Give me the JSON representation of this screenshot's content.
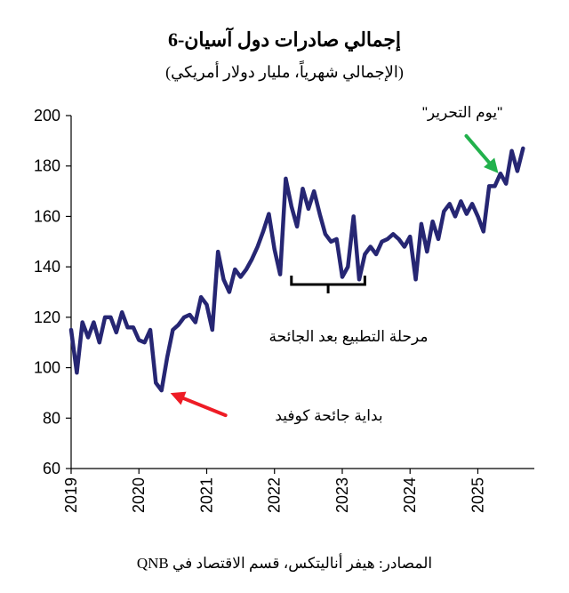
{
  "chart_data": {
    "type": "line",
    "title": "إجمالي صادرات دول آسيان-6",
    "subtitle": "(الإجمالي شهرياً، مليار دولار أمريكي)",
    "source": "المصادر: هيفر أناليتكس، قسم الاقتصاد في QNB",
    "xlabel": "",
    "ylabel": "",
    "ylim": [
      60,
      200
    ],
    "yticks": [
      60,
      80,
      100,
      120,
      140,
      160,
      180,
      200
    ],
    "xlim": [
      "2019-01",
      "2025-11"
    ],
    "xticks": [
      "2019",
      "2020",
      "2021",
      "2022",
      "2023",
      "2024",
      "2025"
    ],
    "grid": false,
    "line_color": "#262673",
    "series": [
      {
        "name": "",
        "points": [
          [
            "2019-01",
            115
          ],
          [
            "2019-02",
            98
          ],
          [
            "2019-03",
            118
          ],
          [
            "2019-04",
            112
          ],
          [
            "2019-05",
            118
          ],
          [
            "2019-06",
            110
          ],
          [
            "2019-07",
            120
          ],
          [
            "2019-08",
            120
          ],
          [
            "2019-09",
            114
          ],
          [
            "2019-10",
            122
          ],
          [
            "2019-11",
            116
          ],
          [
            "2019-12",
            116
          ],
          [
            "2020-01",
            111
          ],
          [
            "2020-02",
            110
          ],
          [
            "2020-03",
            115
          ],
          [
            "2020-04",
            94
          ],
          [
            "2020-05",
            91
          ],
          [
            "2020-06",
            104
          ],
          [
            "2020-07",
            115
          ],
          [
            "2020-08",
            117
          ],
          [
            "2020-09",
            120
          ],
          [
            "2020-10",
            121
          ],
          [
            "2020-11",
            118
          ],
          [
            "2020-12",
            128
          ],
          [
            "2021-01",
            125
          ],
          [
            "2021-02",
            115
          ],
          [
            "2021-03",
            146
          ],
          [
            "2021-04",
            135
          ],
          [
            "2021-05",
            130
          ],
          [
            "2021-06",
            139
          ],
          [
            "2021-07",
            136
          ],
          [
            "2021-08",
            139
          ],
          [
            "2021-09",
            143
          ],
          [
            "2021-10",
            148
          ],
          [
            "2021-11",
            154
          ],
          [
            "2021-12",
            161
          ],
          [
            "2022-01",
            147
          ],
          [
            "2022-02",
            137
          ],
          [
            "2022-03",
            175
          ],
          [
            "2022-04",
            164
          ],
          [
            "2022-05",
            156
          ],
          [
            "2022-06",
            171
          ],
          [
            "2022-07",
            163
          ],
          [
            "2022-08",
            170
          ],
          [
            "2022-09",
            161
          ],
          [
            "2022-10",
            153
          ],
          [
            "2022-11",
            150
          ],
          [
            "2022-12",
            151
          ],
          [
            "2023-01",
            136
          ],
          [
            "2023-02",
            140
          ],
          [
            "2023-03",
            160
          ],
          [
            "2023-04",
            135
          ],
          [
            "2023-05",
            145
          ],
          [
            "2023-06",
            148
          ],
          [
            "2023-07",
            145
          ],
          [
            "2023-08",
            150
          ],
          [
            "2023-09",
            151
          ],
          [
            "2023-10",
            153
          ],
          [
            "2023-11",
            151
          ],
          [
            "2023-12",
            148
          ],
          [
            "2024-01",
            152
          ],
          [
            "2024-02",
            135
          ],
          [
            "2024-03",
            157
          ],
          [
            "2024-04",
            146
          ],
          [
            "2024-05",
            158
          ],
          [
            "2024-06",
            151
          ],
          [
            "2024-07",
            162
          ],
          [
            "2024-08",
            165
          ],
          [
            "2024-09",
            160
          ],
          [
            "2024-10",
            166
          ],
          [
            "2024-11",
            161
          ],
          [
            "2024-12",
            165
          ],
          [
            "2025-01",
            160
          ],
          [
            "2025-02",
            154
          ],
          [
            "2025-03",
            172
          ],
          [
            "2025-04",
            172
          ],
          [
            "2025-05",
            177
          ],
          [
            "2025-06",
            173
          ],
          [
            "2025-07",
            186
          ],
          [
            "2025-08",
            178
          ],
          [
            "2025-09",
            187
          ]
        ]
      }
    ],
    "annotations": [
      {
        "text": "بداية جائحة كوفيد",
        "arrow_color": "#ee1c25",
        "points_to": [
          "2020-05",
          91
        ]
      },
      {
        "text": "مرحلة التطبيع بعد الجائحة",
        "bracket": [
          "2022-04",
          "2023-05"
        ],
        "bracket_at_y": 133
      },
      {
        "text": "\"يوم التحرير\"",
        "arrow_color": "#22b14c",
        "points_to": [
          "2025-04",
          175
        ]
      }
    ]
  }
}
